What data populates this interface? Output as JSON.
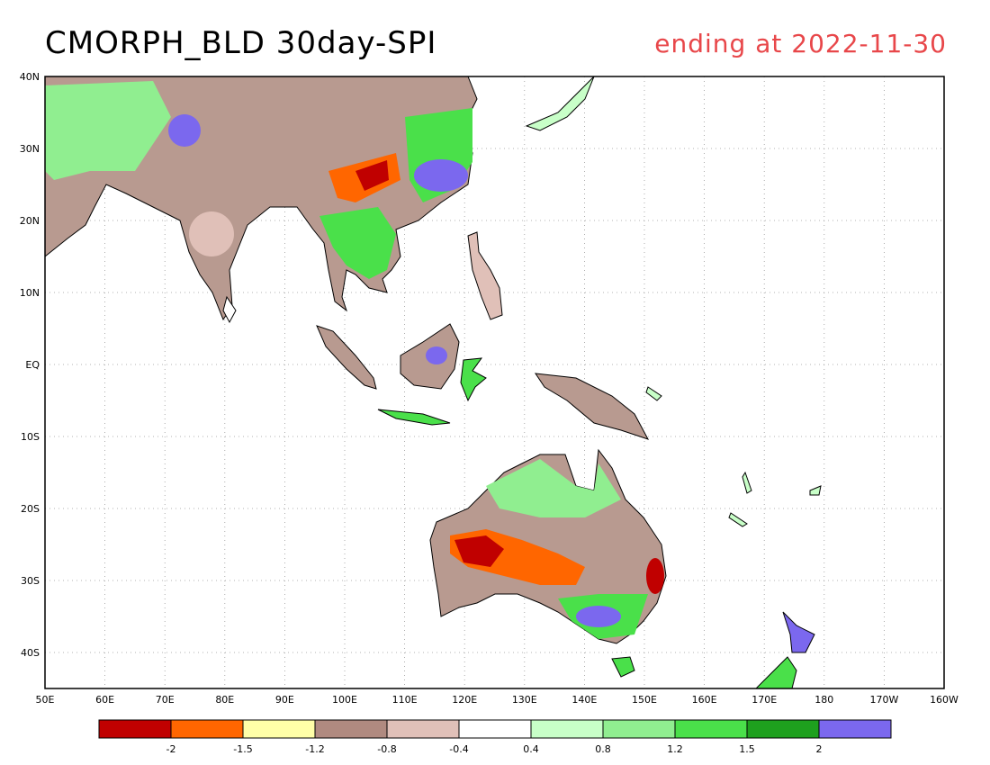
{
  "title": "CMORPH_BLD 30day-SPI",
  "subtitle": "ending at 2022-11-30",
  "subtitle_color": "#e8474a",
  "map": {
    "lon_range": [
      50,
      200
    ],
    "lat_range": [
      -45,
      40
    ],
    "grid": true,
    "lon_ticks": [
      "50E",
      "60E",
      "70E",
      "80E",
      "90E",
      "100E",
      "110E",
      "120E",
      "130E",
      "140E",
      "150E",
      "160E",
      "170E",
      "180",
      "170W",
      "160W"
    ],
    "lat_ticks": [
      "40N",
      "30N",
      "20N",
      "10N",
      "EQ",
      "10S",
      "20S",
      "30S",
      "40S"
    ]
  },
  "legend": {
    "colors": [
      "#c00000",
      "#ff6600",
      "#ffffa8",
      "#b08a80",
      "#e0c0b8",
      "#ffffff",
      "#c8ffc8",
      "#90ee90",
      "#4ae04a",
      "#1ea01e",
      "#7b68ee"
    ],
    "labels": [
      "-2",
      "-1.5",
      "-1.2",
      "-0.8",
      "-0.4",
      "0.4",
      "0.8",
      "1.2",
      "1.5",
      "2"
    ]
  }
}
